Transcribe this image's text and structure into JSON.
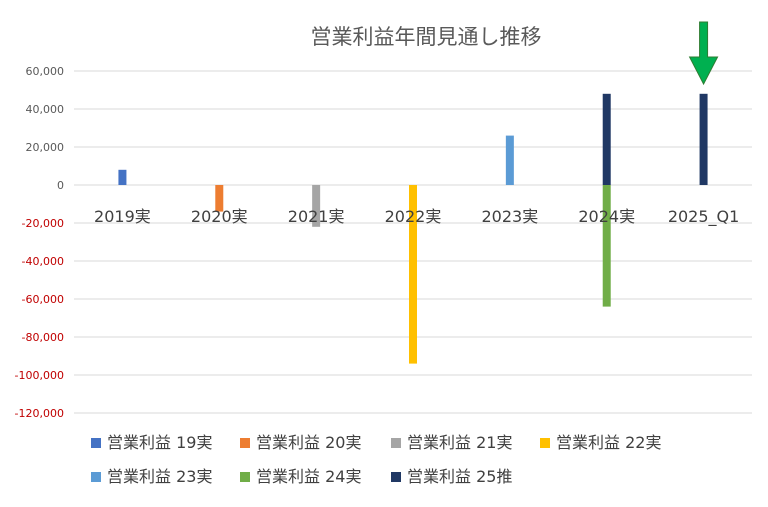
{
  "chart_data": {
    "type": "bar",
    "title": "営業利益年間見通し推移",
    "categories": [
      "2019実",
      "2020実",
      "2021実",
      "2022実",
      "2023実",
      "2024実",
      "2025_Q1"
    ],
    "series": [
      {
        "name": "営業利益 19実",
        "color": "#4472C4",
        "values": [
          8000,
          null,
          null,
          null,
          null,
          null,
          null
        ]
      },
      {
        "name": "営業利益 20実",
        "color": "#ED7D31",
        "values": [
          null,
          -14000,
          null,
          null,
          null,
          null,
          null
        ]
      },
      {
        "name": "営業利益 21実",
        "color": "#A5A5A5",
        "values": [
          null,
          null,
          -22000,
          null,
          null,
          null,
          null
        ]
      },
      {
        "name": "営業利益 22実",
        "color": "#FFC000",
        "values": [
          null,
          null,
          null,
          -94000,
          null,
          null,
          null
        ]
      },
      {
        "name": "営業利益 23実",
        "color": "#5B9BD5",
        "values": [
          null,
          null,
          null,
          null,
          26000,
          null,
          null
        ]
      },
      {
        "name": "営業利益 24実",
        "color": "#70AD47",
        "values": [
          null,
          null,
          null,
          null,
          null,
          -64000,
          null
        ]
      },
      {
        "name": "営業利益 25推",
        "color": "#203864",
        "values": [
          null,
          null,
          null,
          null,
          null,
          48000,
          48000
        ]
      }
    ],
    "ylim": [
      -120000,
      60000
    ],
    "yticks": [
      60000,
      40000,
      20000,
      0,
      -20000,
      -40000,
      -60000,
      -80000,
      -100000,
      -120000
    ],
    "ytick_labels": [
      "60,000",
      "40,000",
      "20,000",
      "0",
      "-20,000",
      "-40,000",
      "-60,000",
      "-80,000",
      "-100,000",
      "-120,000"
    ],
    "positive_tick_color": "#595959",
    "negative_tick_color": "#C00000",
    "grid": true,
    "legend": "bottom",
    "annotation": {
      "type": "down-arrow",
      "color": "#00B050",
      "target_category": "2025_Q1"
    }
  }
}
